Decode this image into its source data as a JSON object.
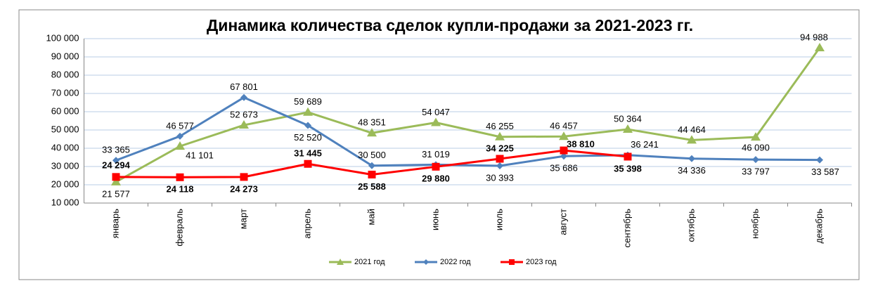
{
  "chart_data": {
    "type": "line",
    "title": "Динамика количества сделок купли-продажи за 2021-2023 гг.",
    "categories": [
      "январь",
      "февраль",
      "март",
      "апрель",
      "май",
      "июнь",
      "июль",
      "август",
      "сентябрь",
      "октябрь",
      "ноябрь",
      "декабрь"
    ],
    "series": [
      {
        "name": "2021 год",
        "color": "#9bbb59",
        "marker": "triangle",
        "values": [
          21577,
          41101,
          52673,
          59689,
          48351,
          54047,
          46255,
          46457,
          50364,
          44464,
          46090,
          94988
        ],
        "value_labels": [
          "21 577",
          "41 101",
          "52 673",
          "59 689",
          "48 351",
          "54 047",
          "46 255",
          "46 457",
          "50 364",
          "44 464",
          "46 090",
          "94 988"
        ]
      },
      {
        "name": "2022 год",
        "color": "#4f81bd",
        "marker": "diamond",
        "values": [
          33365,
          46577,
          67801,
          52520,
          30500,
          31019,
          30393,
          35686,
          36241,
          34336,
          33797,
          33587
        ],
        "value_labels": [
          "33 365",
          "46 577",
          "67 801",
          "52 520",
          "30 500",
          "31 019",
          "30 393",
          "35 686",
          "36 241",
          "34 336",
          "33 797",
          "33 587"
        ]
      },
      {
        "name": "2023 год",
        "color": "#ff0000",
        "marker": "square",
        "values": [
          24294,
          24118,
          24273,
          31445,
          25588,
          29880,
          34225,
          38810,
          35398,
          null,
          null,
          null
        ],
        "value_labels": [
          "24 294",
          "24 118",
          "24 273",
          "31 445",
          "25 588",
          "29 880",
          "34 225",
          "38 810",
          "35 398",
          null,
          null,
          null
        ]
      }
    ],
    "ylim": [
      10000,
      100000
    ],
    "yticks": [
      {
        "value": 10000,
        "label": "10 000"
      },
      {
        "value": 20000,
        "label": "20 000"
      },
      {
        "value": 30000,
        "label": "30 000"
      },
      {
        "value": 40000,
        "label": "40 000"
      },
      {
        "value": 50000,
        "label": "50 000"
      },
      {
        "value": 60000,
        "label": "60 000"
      },
      {
        "value": 70000,
        "label": "70 000"
      },
      {
        "value": 80000,
        "label": "80 000"
      },
      {
        "value": 90000,
        "label": "90 000"
      },
      {
        "value": 100000,
        "label": "100 000"
      }
    ],
    "grid": true,
    "legend": "bottom"
  }
}
